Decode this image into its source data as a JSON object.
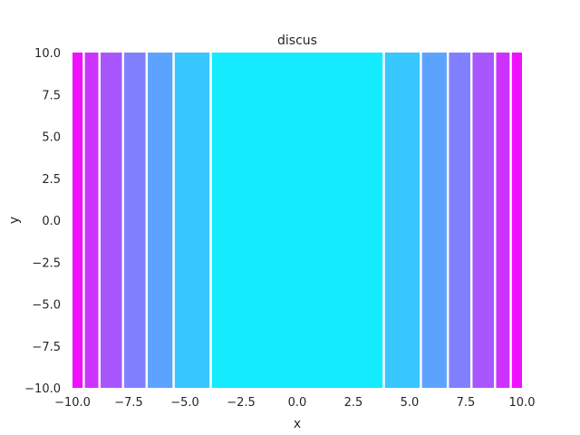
{
  "chart_data": {
    "type": "heatmap",
    "subtype": "filled-contour",
    "title": "discus",
    "xlabel": "x",
    "ylabel": "y",
    "xlim": [
      -10,
      10
    ],
    "ylim": [
      -10,
      10
    ],
    "x_ticks": [
      "−10.0",
      "−7.5",
      "−5.0",
      "−2.5",
      "0.0",
      "2.5",
      "5.0",
      "7.5",
      "10.0"
    ],
    "y_ticks": [
      "10.0",
      "7.5",
      "5.0",
      "2.5",
      "0.0",
      "−2.5",
      "−5.0",
      "−7.5",
      "−10.0"
    ],
    "x_tick_values": [
      -10,
      -7.5,
      -5,
      -2.5,
      0,
      2.5,
      5,
      7.5,
      10
    ],
    "y_tick_values": [
      10,
      7.5,
      5,
      2.5,
      0,
      -2.5,
      -5,
      -7.5,
      -10
    ],
    "grid": false,
    "colormap": "cool",
    "bands": [
      {
        "x0": -10.0,
        "x1": -9.55,
        "color": "#f00fff"
      },
      {
        "x0": -9.45,
        "x1": -8.85,
        "color": "#cc33ff"
      },
      {
        "x0": -8.75,
        "x1": -7.8,
        "color": "#a857ff"
      },
      {
        "x0": -7.7,
        "x1": -6.75,
        "color": "#8080ff"
      },
      {
        "x0": -6.65,
        "x1": -5.55,
        "color": "#5ca3ff"
      },
      {
        "x0": -5.45,
        "x1": -3.9,
        "color": "#38c7ff"
      },
      {
        "x0": -3.8,
        "x1": 3.8,
        "color": "#14ebff"
      },
      {
        "x0": 3.9,
        "x1": 5.45,
        "color": "#38c7ff"
      },
      {
        "x0": 5.55,
        "x1": 6.65,
        "color": "#5ca3ff"
      },
      {
        "x0": 6.75,
        "x1": 7.7,
        "color": "#8080ff"
      },
      {
        "x0": 7.8,
        "x1": 8.75,
        "color": "#a857ff"
      },
      {
        "x0": 8.85,
        "x1": 9.45,
        "color": "#cc33ff"
      },
      {
        "x0": 9.55,
        "x1": 10.0,
        "color": "#f00fff"
      }
    ]
  }
}
